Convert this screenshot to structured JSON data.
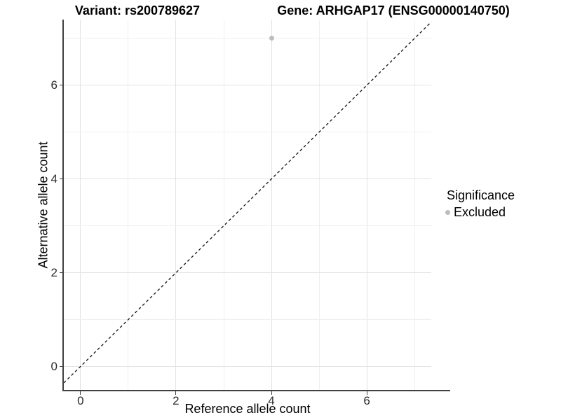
{
  "titles": {
    "left": "Variant: rs200789627",
    "right": "Gene: ARHGAP17 (ENSG00000140750)"
  },
  "legend": {
    "title": "Significance",
    "items": [
      {
        "label": "Excluded",
        "color": "#bdbdbd"
      }
    ]
  },
  "chart_data": {
    "type": "scatter",
    "title_left": "Variant: rs200789627",
    "title_right": "Gene: ARHGAP17 (ENSG00000140750)",
    "xlabel": "Reference allele count",
    "ylabel": "Alternative allele count",
    "xlim": [
      -0.35,
      7.35
    ],
    "ylim": [
      -0.5,
      7.4
    ],
    "x_major_ticks": [
      0,
      2,
      4,
      6
    ],
    "y_major_ticks": [
      0,
      2,
      4,
      6
    ],
    "x_gridlines": [
      0,
      1,
      2,
      3,
      4,
      5,
      6,
      7
    ],
    "y_gridlines": [
      0,
      1,
      2,
      3,
      4,
      5,
      6,
      7
    ],
    "grid": true,
    "legend_position": "right",
    "series": [
      {
        "name": "Excluded",
        "color": "#bdbdbd",
        "points": [
          {
            "x": 4,
            "y": 7
          }
        ]
      }
    ],
    "identity_line": {
      "slope": 1,
      "intercept": 0,
      "style": "dashed",
      "color": "#111111"
    }
  }
}
